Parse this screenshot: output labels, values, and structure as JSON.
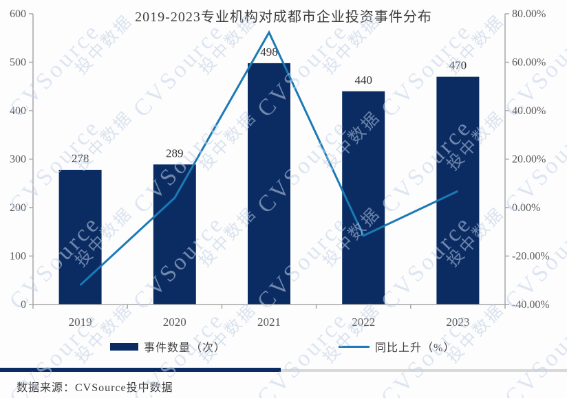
{
  "title": "2019-2023专业机构对成都市企业投资事件分布",
  "chart_data": {
    "type": "bar+line",
    "categories": [
      "2019",
      "2020",
      "2021",
      "2022",
      "2023"
    ],
    "series": [
      {
        "name": "事件数量（次）",
        "type": "bar",
        "axis": "left",
        "values": [
          278,
          289,
          498,
          440,
          470
        ],
        "labels": [
          "278",
          "289",
          "498",
          "440",
          "470"
        ]
      },
      {
        "name": "同比上升（%）",
        "type": "line",
        "axis": "right",
        "values": [
          -32,
          4,
          72.3,
          -11.6,
          6.8
        ]
      }
    ],
    "left_axis": {
      "min": 0,
      "max": 600,
      "step": 100,
      "ticks": [
        "0",
        "100",
        "200",
        "300",
        "400",
        "500",
        "600"
      ]
    },
    "right_axis": {
      "min": -40,
      "max": 80,
      "step": 20,
      "ticks": [
        "-40.00%",
        "-20.00%",
        "0.00%",
        "20.00%",
        "40.00%",
        "60.00%",
        "80.00%"
      ]
    },
    "grid": false,
    "legend_position": "bottom"
  },
  "legend": {
    "bar_label": "事件数量（次）",
    "line_label": "同比上升（%）"
  },
  "watermark": {
    "brand": "CVSource",
    "cn": "投中数据"
  },
  "footer": {
    "source": "数据来源：CVSource投中数据"
  },
  "colors": {
    "bar": "#0b2c63",
    "line": "#1b7ab5",
    "axis": "#a6a6a6",
    "tick_text": "#595959",
    "value_text": "#333333",
    "divider_navy": "#0b2c63",
    "divider_gray": "#d9d9d9"
  }
}
